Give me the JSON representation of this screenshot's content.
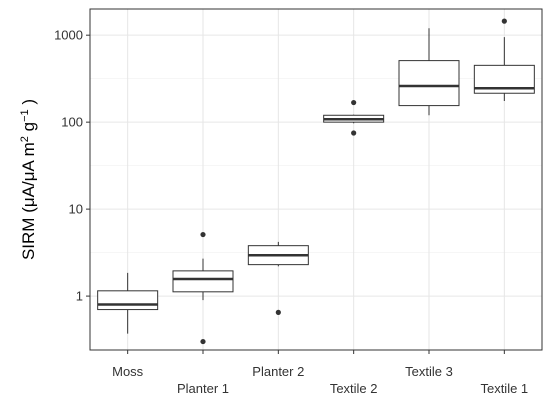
{
  "chart_data": {
    "type": "boxplot",
    "ylabel": {
      "parts": [
        "SIRM (μA/μA m",
        "2",
        " g",
        "−1",
        " )"
      ]
    },
    "y_scale": "log10",
    "ylim": [
      0.24,
      2000
    ],
    "y_ticks": [
      1,
      10,
      100,
      1000
    ],
    "y_tick_labels": [
      "1",
      "10",
      "100",
      "1000"
    ],
    "grid": true,
    "categories": [
      "Moss",
      "Planter 1",
      "Planter 2",
      "Textile 2",
      "Textile 3",
      "Textile 1"
    ],
    "boxes": [
      {
        "category": "Moss",
        "whisker_low": 0.37,
        "q1": 0.7,
        "median": 0.8,
        "q3": 1.15,
        "whisker_high": 1.85,
        "outliers": []
      },
      {
        "category": "Planter 1",
        "whisker_low": 0.9,
        "q1": 1.12,
        "median": 1.57,
        "q3": 1.95,
        "whisker_high": 2.7,
        "outliers": [
          5.1,
          0.3
        ]
      },
      {
        "category": "Planter 2",
        "whisker_low": 2.2,
        "q1": 2.3,
        "median": 2.95,
        "q3": 3.8,
        "whisker_high": 4.2,
        "outliers": [
          0.65
        ]
      },
      {
        "category": "Textile 2",
        "whisker_low": 97,
        "q1": 100,
        "median": 108,
        "q3": 120,
        "whisker_high": 122,
        "outliers": [
          168,
          75
        ]
      },
      {
        "category": "Textile 3",
        "whisker_low": 120,
        "q1": 155,
        "median": 260,
        "q3": 510,
        "whisker_high": 1200,
        "outliers": []
      },
      {
        "category": "Textile 1",
        "whisker_low": 175,
        "q1": 215,
        "median": 245,
        "q3": 450,
        "whisker_high": 950,
        "outliers": [
          1450
        ]
      }
    ]
  }
}
